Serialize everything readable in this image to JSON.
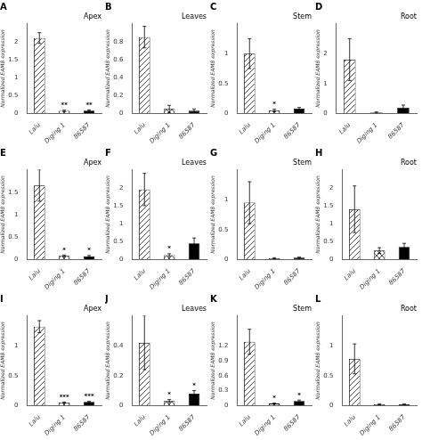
{
  "chart_data": [
    {
      "type": "bar",
      "title": "A",
      "subtitle": "Apex",
      "ylabel": "Normalized EAM8 expression",
      "categories": [
        "Lalu",
        "Diging 1",
        "86587"
      ],
      "values": [
        2.1,
        0.07,
        0.08
      ],
      "errors": [
        0.15,
        0.02,
        0.02
      ],
      "colors": [
        "white",
        "white",
        "black"
      ],
      "ylim": [
        0,
        2.5
      ],
      "yticks": [
        0,
        0.5,
        1.0,
        1.5,
        2.0
      ],
      "grid": false,
      "annotations": [
        {
          "x": "Diging 1",
          "text": "**"
        },
        {
          "x": "86587",
          "text": "**"
        }
      ]
    },
    {
      "type": "bar",
      "title": "B",
      "subtitle": "Leaves",
      "ylabel": "Normalized EAM8 expression",
      "categories": [
        "Lalu",
        "Diging 1",
        "86587"
      ],
      "values": [
        0.85,
        0.05,
        0.03
      ],
      "errors": [
        0.12,
        0.04,
        0.02
      ],
      "colors": [
        "white",
        "white",
        "black"
      ],
      "ylim": [
        0,
        1.0
      ],
      "yticks": [
        0,
        0.2,
        0.4,
        0.6,
        0.8
      ],
      "grid": false,
      "annotations": []
    },
    {
      "type": "bar",
      "title": "C",
      "subtitle": "Stem",
      "ylabel": "Normalized EAM8 expression",
      "categories": [
        "Lalu",
        "Diging 1",
        "86587"
      ],
      "values": [
        1.0,
        0.05,
        0.08
      ],
      "errors": [
        0.25,
        0.02,
        0.02
      ],
      "colors": [
        "white",
        "white",
        "black"
      ],
      "ylim": [
        0,
        1.5
      ],
      "yticks": [
        0,
        0.5,
        1.0
      ],
      "grid": false,
      "annotations": [
        {
          "x": "Diging 1",
          "text": "*"
        }
      ]
    },
    {
      "type": "bar",
      "title": "D",
      "subtitle": "Root",
      "ylabel": "Normalized EAM8 expression",
      "categories": [
        "Lalu",
        "Diging 1",
        "86587"
      ],
      "values": [
        1.8,
        0.03,
        0.2
      ],
      "errors": [
        0.7,
        0.02,
        0.08
      ],
      "colors": [
        "white",
        "white",
        "black"
      ],
      "ylim": [
        0,
        3.0
      ],
      "yticks": [
        0,
        1,
        2
      ],
      "grid": false,
      "annotations": []
    },
    {
      "type": "bar",
      "title": "E",
      "subtitle": "Apex",
      "ylabel": "Normalized EAM8 expression",
      "categories": [
        "Lalu",
        "Diging 1",
        "86587"
      ],
      "values": [
        1.65,
        0.08,
        0.07
      ],
      "errors": [
        0.35,
        0.02,
        0.02
      ],
      "colors": [
        "white",
        "white",
        "black"
      ],
      "ylim": [
        0,
        2.0
      ],
      "yticks": [
        0,
        0.5,
        1.0,
        1.5
      ],
      "grid": false,
      "annotations": [
        {
          "x": "Diging 1",
          "text": "*"
        },
        {
          "x": "86587",
          "text": "*"
        }
      ]
    },
    {
      "type": "bar",
      "title": "F",
      "subtitle": "Leaves",
      "ylabel": "Normalized EAM8 expression",
      "categories": [
        "Lalu",
        "Diging 1",
        "86587"
      ],
      "values": [
        1.95,
        0.12,
        0.45
      ],
      "errors": [
        0.45,
        0.04,
        0.15
      ],
      "colors": [
        "white",
        "white",
        "black"
      ],
      "ylim": [
        0,
        2.5
      ],
      "yticks": [
        0,
        0.5,
        1.0,
        1.5,
        2.0
      ],
      "grid": false,
      "annotations": [
        {
          "x": "Diging 1",
          "text": "*"
        }
      ]
    },
    {
      "type": "bar",
      "title": "G",
      "subtitle": "Stem",
      "ylabel": "Normalized EAM8 expression",
      "categories": [
        "Lalu",
        "Diging 1",
        "86587"
      ],
      "values": [
        0.95,
        0.02,
        0.03
      ],
      "errors": [
        0.35,
        0.01,
        0.01
      ],
      "colors": [
        "white",
        "white",
        "black"
      ],
      "ylim": [
        0,
        1.5
      ],
      "yticks": [
        0,
        0.5,
        1.0
      ],
      "grid": false,
      "annotations": []
    },
    {
      "type": "bar",
      "title": "H",
      "subtitle": "Root",
      "ylabel": "Normalized EAM8 expression",
      "categories": [
        "Lalu",
        "Diging 1",
        "86587"
      ],
      "values": [
        1.4,
        0.25,
        0.35
      ],
      "errors": [
        0.65,
        0.08,
        0.1
      ],
      "colors": [
        "white",
        "white",
        "black"
      ],
      "ylim": [
        0,
        2.5
      ],
      "yticks": [
        0,
        0.5,
        1.0,
        1.5,
        2.0
      ],
      "grid": false,
      "annotations": []
    },
    {
      "type": "bar",
      "title": "I",
      "subtitle": "Apex",
      "ylabel": "Normalized EAM8 expression",
      "categories": [
        "Lalu",
        "Diging 1",
        "86587"
      ],
      "values": [
        1.32,
        0.05,
        0.06
      ],
      "errors": [
        0.1,
        0.01,
        0.01
      ],
      "colors": [
        "white",
        "white",
        "black"
      ],
      "ylim": [
        0,
        1.5
      ],
      "yticks": [
        0,
        0.5,
        1.0
      ],
      "grid": false,
      "annotations": [
        {
          "x": "Diging 1",
          "text": "***"
        },
        {
          "x": "86587",
          "text": "***"
        }
      ]
    },
    {
      "type": "bar",
      "title": "J",
      "subtitle": "Leaves",
      "ylabel": "Normalized EAM8 expression",
      "categories": [
        "Lalu",
        "Diging 1",
        "86587"
      ],
      "values": [
        0.42,
        0.03,
        0.08
      ],
      "errors": [
        0.18,
        0.01,
        0.02
      ],
      "colors": [
        "white",
        "white",
        "black"
      ],
      "ylim": [
        0,
        0.6
      ],
      "yticks": [
        0,
        0.2,
        0.4
      ],
      "grid": false,
      "annotations": [
        {
          "x": "Diging 1",
          "text": "*"
        },
        {
          "x": "86587",
          "text": "*"
        }
      ]
    },
    {
      "type": "bar",
      "title": "K",
      "subtitle": "Stem",
      "ylabel": "Normalized EAM8 expression",
      "categories": [
        "Lalu",
        "Diging 1",
        "86587"
      ],
      "values": [
        1.28,
        0.04,
        0.09
      ],
      "errors": [
        0.25,
        0.01,
        0.02
      ],
      "colors": [
        "white",
        "white",
        "black"
      ],
      "ylim": [
        0,
        1.8
      ],
      "yticks": [
        0,
        0.3,
        0.6,
        0.9,
        1.2
      ],
      "grid": false,
      "annotations": [
        {
          "x": "Diging 1",
          "text": "*"
        },
        {
          "x": "86587",
          "text": "*"
        }
      ]
    },
    {
      "type": "bar",
      "title": "L",
      "subtitle": "Root",
      "ylabel": "Normalized EAM8 expression",
      "categories": [
        "Lalu",
        "Diging 1",
        "86587"
      ],
      "values": [
        0.78,
        0.02,
        0.02
      ],
      "errors": [
        0.25,
        0.01,
        0.01
      ],
      "colors": [
        "white",
        "white",
        "black"
      ],
      "ylim": [
        0,
        1.5
      ],
      "yticks": [
        0,
        0.5,
        1.0
      ],
      "grid": false,
      "annotations": []
    }
  ]
}
